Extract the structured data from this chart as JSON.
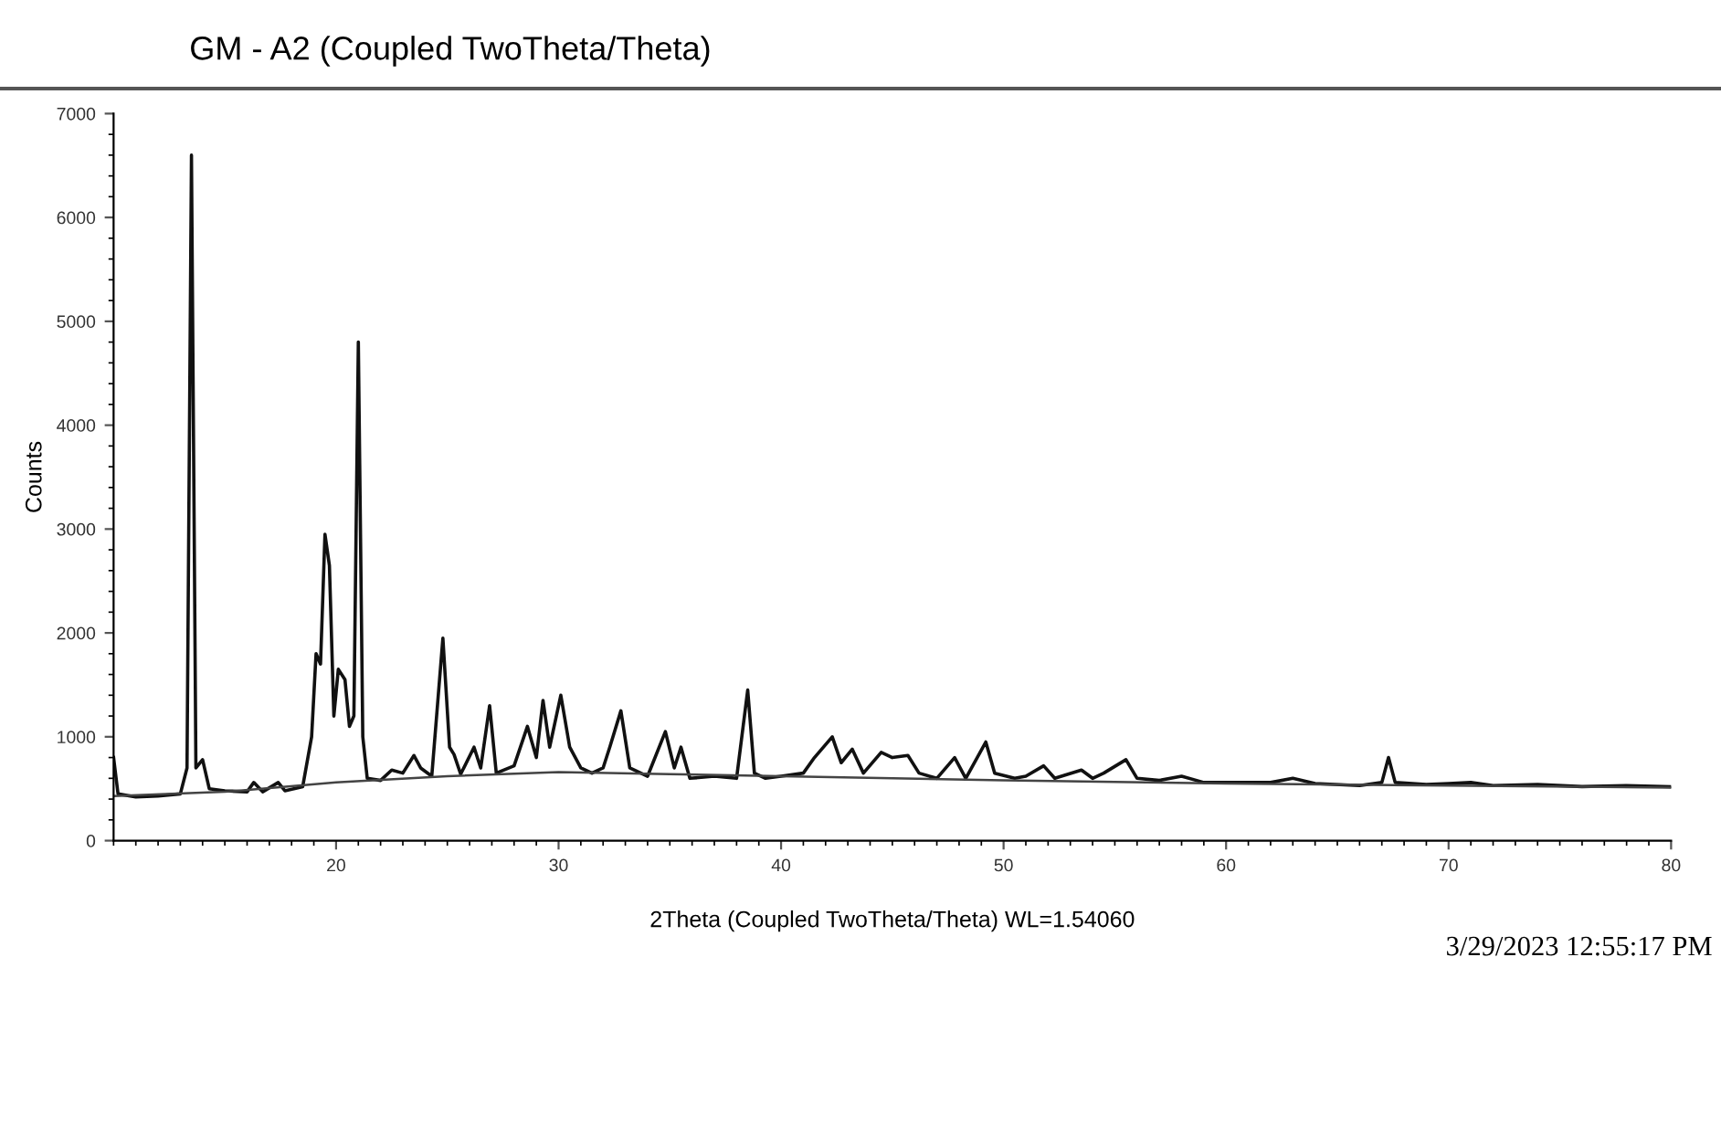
{
  "chart_data": {
    "type": "line",
    "title": "GM - A2 (Coupled TwoTheta/Theta)",
    "xlabel": "2Theta (Coupled TwoTheta/Theta) WL=1.54060",
    "ylabel": "Counts",
    "annotations": [
      "3/29/2023 12:55:17 PM"
    ],
    "xlim": [
      10,
      80
    ],
    "xticks": [
      20,
      30,
      40,
      50,
      60,
      70,
      80
    ],
    "ylim": [
      0,
      7000
    ],
    "yticks": [
      0,
      1000,
      2000,
      3000,
      4000,
      5000,
      6000,
      7000
    ],
    "grid": false,
    "legend": false,
    "marker": "none",
    "line_style": "solid",
    "series": [
      {
        "color": "#111111",
        "x": [
          10.0,
          10.2,
          11,
          12,
          13,
          13.3,
          13.5,
          13.7,
          14,
          14.3,
          15,
          16,
          16.3,
          16.7,
          17.4,
          17.7,
          18.5,
          18.9,
          19.1,
          19.3,
          19.5,
          19.7,
          19.9,
          20.1,
          20.4,
          20.6,
          20.8,
          21.0,
          21.2,
          21.4,
          22,
          22.5,
          23,
          23.5,
          23.8,
          24.3,
          24.8,
          25.1,
          25.3,
          25.6,
          26.2,
          26.5,
          26.9,
          27.2,
          28,
          28.6,
          29,
          29.3,
          29.6,
          30.1,
          30.5,
          31,
          31.5,
          32,
          32.3,
          32.8,
          33.2,
          34,
          34.8,
          35.2,
          35.5,
          35.9,
          37,
          38,
          38.5,
          38.8,
          39.3,
          40,
          41,
          41.5,
          42.3,
          42.7,
          43.2,
          43.7,
          44.5,
          45,
          45.7,
          46.2,
          47,
          47.8,
          48.3,
          49.2,
          49.6,
          50.5,
          51,
          51.8,
          52.3,
          53.5,
          54,
          54.5,
          55.5,
          56,
          57,
          58,
          59,
          60,
          62,
          63,
          64,
          66,
          67,
          67.3,
          67.6,
          69,
          70,
          71,
          72,
          74,
          76,
          78,
          80
        ],
        "values": [
          800,
          450,
          420,
          430,
          450,
          700,
          6600,
          700,
          780,
          500,
          480,
          470,
          560,
          470,
          560,
          480,
          520,
          1000,
          1800,
          1700,
          2950,
          2650,
          1200,
          1650,
          1550,
          1100,
          1200,
          4800,
          1000,
          600,
          580,
          680,
          650,
          820,
          700,
          620,
          1950,
          900,
          830,
          640,
          900,
          700,
          1300,
          650,
          720,
          1100,
          800,
          1350,
          900,
          1400,
          900,
          700,
          650,
          700,
          900,
          1250,
          700,
          620,
          1050,
          700,
          900,
          600,
          620,
          600,
          1450,
          650,
          600,
          620,
          650,
          800,
          1000,
          750,
          880,
          650,
          850,
          800,
          820,
          650,
          600,
          800,
          600,
          950,
          650,
          600,
          620,
          720,
          600,
          680,
          600,
          650,
          780,
          600,
          580,
          620,
          560,
          560,
          560,
          600,
          550,
          530,
          560,
          800,
          560,
          540,
          550,
          560,
          530,
          540,
          520,
          530,
          520
        ]
      },
      {
        "color": "#444444",
        "x": [
          10,
          15,
          20,
          25,
          30,
          35,
          40,
          50,
          60,
          70,
          80
        ],
        "values": [
          430,
          470,
          560,
          620,
          660,
          640,
          620,
          580,
          550,
          530,
          510
        ]
      }
    ]
  }
}
